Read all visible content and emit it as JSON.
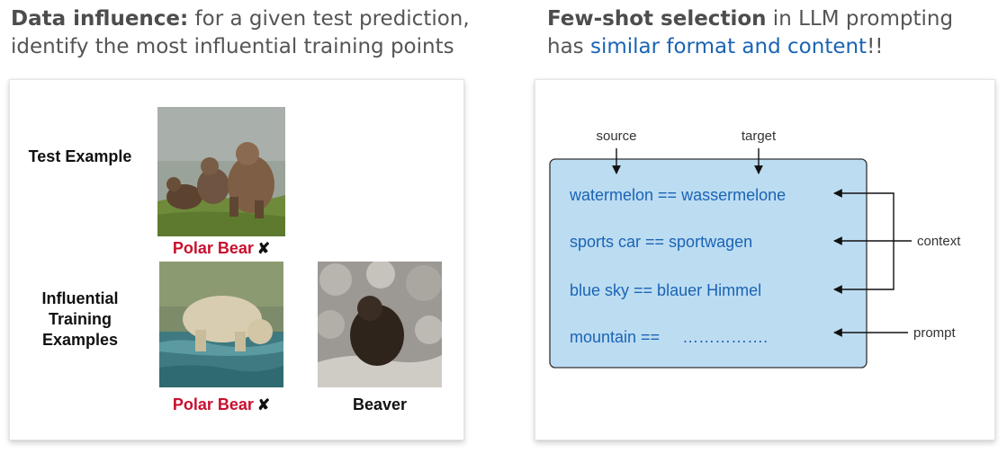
{
  "left": {
    "heading_bold": "Data influence:",
    "heading_rest": " for a given test prediction, identify the most influential training points",
    "test_label": "Test Example",
    "influential_label": [
      "Influential",
      "Training",
      "Examples"
    ],
    "test_prediction": "Polar Bear",
    "train1_label": "Polar Bear",
    "train2_label": "Beaver",
    "wrong_mark": "✘"
  },
  "right": {
    "heading_bold": "Few-shot selection",
    "heading_mid": " in LLM prompting",
    "heading_line2_pre": "has ",
    "heading_blue": "similar format and content",
    "heading_tail": "!!",
    "source_label": "source",
    "target_label": "target",
    "rows": [
      "watermelon == wassermelone",
      "sports car == sportwagen",
      "blue sky == blauer Himmel",
      "mountain ==     ……………."
    ],
    "context_label": "context",
    "prompt_label": "prompt"
  },
  "colors": {
    "text_blue": "#1a64b4",
    "prompt_box_fill": "#bcdcf2",
    "label_red": "#c8102e"
  }
}
